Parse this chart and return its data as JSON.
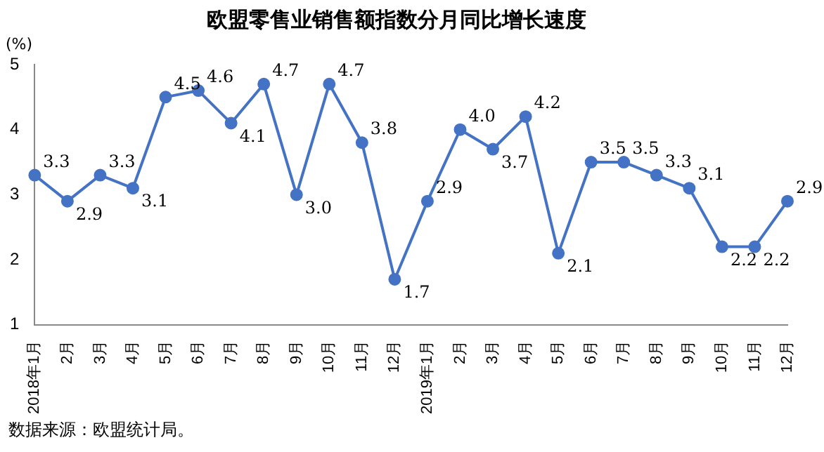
{
  "chart_data": {
    "type": "line",
    "title": "欧盟零售业销售额指数分月同比增长速度",
    "ylabel": "(%)",
    "categories": [
      "2018年1月",
      "2月",
      "3月",
      "4月",
      "5月",
      "6月",
      "7月",
      "8月",
      "9月",
      "10月",
      "11月",
      "12月",
      "2019年1月",
      "2月",
      "3月",
      "4月",
      "5月",
      "6月",
      "7月",
      "8月",
      "9月",
      "10月",
      "11月",
      "12月"
    ],
    "series": [
      {
        "color": "#4472c4",
        "values": [
          3.3,
          2.9,
          3.3,
          3.1,
          4.5,
          4.6,
          4.1,
          4.7,
          3.0,
          4.7,
          3.8,
          1.7,
          2.9,
          4.0,
          3.7,
          4.2,
          2.1,
          3.5,
          3.5,
          3.3,
          3.1,
          2.2,
          2.2,
          2.9
        ]
      }
    ],
    "value_labels": [
      "3.3",
      "2.9",
      "3.3",
      "3.1",
      "4.5",
      "4.6",
      "4.1",
      "4.7",
      "3.0",
      "4.7",
      "3.8",
      "1.7",
      "2.9",
      "4.0",
      "3.7",
      "4.2",
      "2.1",
      "3.5",
      "3.5",
      "3.3",
      "3.1",
      "2.2",
      "2.2",
      "2.9"
    ],
    "ylim": [
      1,
      5
    ],
    "yticks": [
      1,
      2,
      3,
      4,
      5
    ],
    "grid": false,
    "legend": false,
    "marker": "circle",
    "line_style": "solid",
    "annotations": [
      "数据来源：欧盟统计局。"
    ]
  }
}
